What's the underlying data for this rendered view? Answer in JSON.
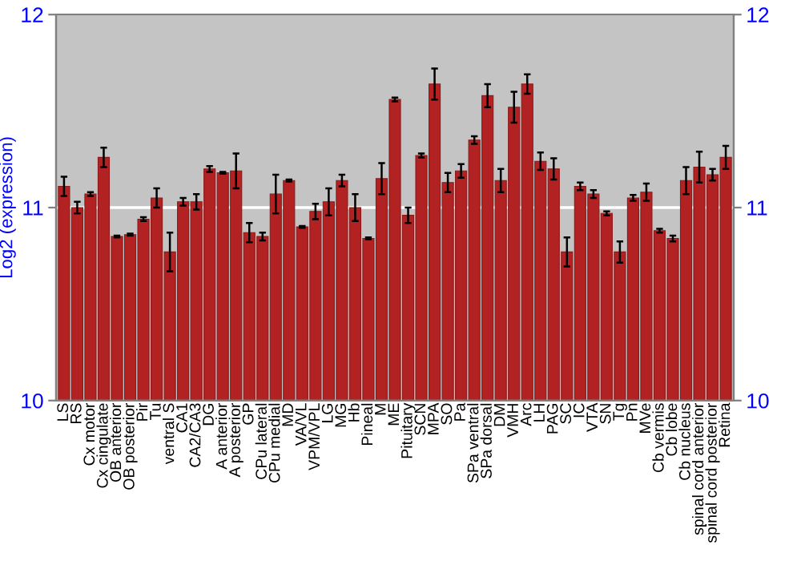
{
  "chart_data": {
    "type": "bar",
    "ylabel": "Log2 (expression)",
    "categories": [
      "LS",
      "RS",
      "Cx motor",
      "Cx cingulate",
      "OB anterior",
      "OB posterior",
      "Pir",
      "Tu",
      "ventral S",
      "CA1",
      "CA2/CA3",
      "DG",
      "A anterior",
      "A posterior",
      "GP",
      "CPu lateral",
      "CPu medial",
      "MD",
      "VA/VL",
      "VPM/VPL",
      "LG",
      "MG",
      "Hb",
      "Pineal",
      "M",
      "ME",
      "Pituitary",
      "SCN",
      "MPA",
      "SO",
      "Pa",
      "SPa ventral",
      "SPa dorsal",
      "DM",
      "VMH",
      "Arc",
      "LH",
      "PAG",
      "SC",
      "IC",
      "VTA",
      "SN",
      "Tg",
      "Pn",
      "MVe",
      "Cb vermis",
      "Cb lobe",
      "Cb nucleus",
      "spinal cord anterior",
      "spinal cord posterior",
      "Retina"
    ],
    "series": [
      {
        "color": "#b22222",
        "values": [
          11.11,
          11.0,
          11.07,
          11.26,
          10.85,
          10.86,
          10.94,
          11.05,
          10.77,
          11.03,
          11.03,
          11.2,
          11.18,
          11.19,
          10.87,
          10.85,
          11.07,
          11.14,
          10.9,
          10.98,
          11.03,
          11.14,
          11.0,
          10.84,
          11.15,
          11.56,
          10.96,
          11.27,
          11.64,
          11.13,
          11.19,
          11.35,
          11.58,
          11.14,
          11.52,
          11.64,
          11.24,
          11.2,
          10.77,
          11.11,
          11.07,
          10.97,
          10.77,
          11.05,
          11.08,
          10.88,
          10.84,
          11.14,
          11.21,
          11.17,
          11.26
        ],
        "errors": [
          0.05,
          0.03,
          0.01,
          0.05,
          0.005,
          0.005,
          0.01,
          0.05,
          0.1,
          0.02,
          0.04,
          0.015,
          0.005,
          0.09,
          0.05,
          0.02,
          0.1,
          0.005,
          0.005,
          0.04,
          0.07,
          0.03,
          0.07,
          0.005,
          0.08,
          0.01,
          0.04,
          0.01,
          0.08,
          0.05,
          0.035,
          0.02,
          0.06,
          0.06,
          0.08,
          0.05,
          0.045,
          0.055,
          0.075,
          0.02,
          0.02,
          0.01,
          0.055,
          0.015,
          0.045,
          0.01,
          0.015,
          0.07,
          0.08,
          0.03,
          0.06
        ]
      }
    ],
    "ylim": [
      10,
      12
    ],
    "yticks": [
      10,
      11,
      12
    ],
    "y2lim": [
      10,
      12
    ],
    "y2ticks": [
      10,
      11,
      12
    ],
    "grid": "y"
  }
}
